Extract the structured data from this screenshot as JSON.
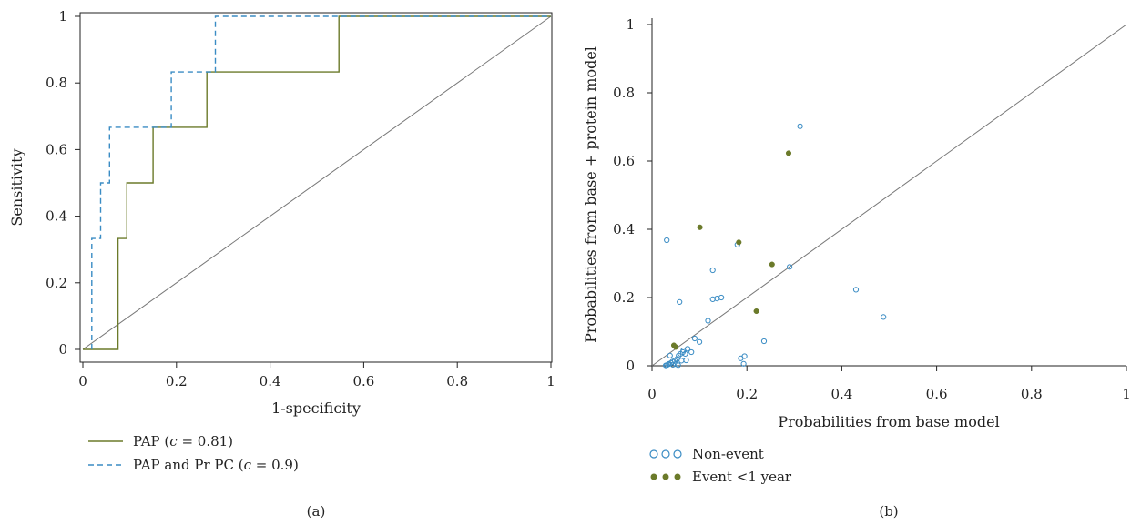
{
  "chart_data": [
    {
      "type": "line",
      "panel_label": "(a)",
      "xlabel": "1-specificity",
      "ylabel": "Sensitivity",
      "xlim": [
        0,
        1
      ],
      "ylim": [
        0,
        1
      ],
      "xticks": [
        "0",
        "0.2",
        "0.4",
        "0.6",
        "0.8",
        "1"
      ],
      "yticks": [
        "0",
        "0.2",
        "0.4",
        "0.6",
        "0.8",
        "1"
      ],
      "legend_position": "below",
      "reference_line": [
        [
          0,
          0
        ],
        [
          1,
          1
        ]
      ],
      "series": [
        {
          "name": "PAP (c = 0.81)",
          "legend_prefix": "PAP (",
          "legend_c": "c",
          "legend_suffix": " = 0.81)",
          "color": "#6b7a2a",
          "dash": "solid",
          "step_points": [
            [
              0,
              0
            ],
            [
              0.075,
              0
            ],
            [
              0.075,
              0.333
            ],
            [
              0.094,
              0.333
            ],
            [
              0.094,
              0.5
            ],
            [
              0.15,
              0.5
            ],
            [
              0.15,
              0.667
            ],
            [
              0.265,
              0.667
            ],
            [
              0.265,
              0.833
            ],
            [
              0.547,
              0.833
            ],
            [
              0.547,
              1.0
            ],
            [
              1.0,
              1.0
            ]
          ]
        },
        {
          "name": "PAP and Pr PC (c = 0.9)",
          "legend_prefix": "PAP and Pr PC (",
          "legend_c": "c",
          "legend_suffix": " = 0.9)",
          "color": "#3a8cc4",
          "dash": "dashed",
          "step_points": [
            [
              0.019,
              0
            ],
            [
              0.019,
              0.333
            ],
            [
              0.038,
              0.333
            ],
            [
              0.038,
              0.5
            ],
            [
              0.057,
              0.5
            ],
            [
              0.057,
              0.667
            ],
            [
              0.189,
              0.667
            ],
            [
              0.189,
              0.833
            ],
            [
              0.283,
              0.833
            ],
            [
              0.283,
              1.0
            ],
            [
              1.0,
              1.0
            ]
          ]
        }
      ]
    },
    {
      "type": "scatter",
      "panel_label": "(b)",
      "xlabel": "Probabilities from base model",
      "ylabel": "Probabilities from base + protein model",
      "xlim": [
        0,
        1
      ],
      "ylim": [
        0,
        1
      ],
      "xticks": [
        "0",
        "0.2",
        "0.4",
        "0.6",
        "0.8",
        "1"
      ],
      "yticks": [
        "0",
        "0.2",
        "0.4",
        "0.6",
        "0.8",
        "1"
      ],
      "legend_position": "below",
      "reference_line": [
        [
          0,
          0
        ],
        [
          1,
          1
        ]
      ],
      "series": [
        {
          "name": "Non-event",
          "color": "#3a8cc4",
          "marker": "open-circle",
          "points": [
            [
              0.031,
              0.368
            ],
            [
              0.312,
              0.702
            ],
            [
              0.18,
              0.355
            ],
            [
              0.128,
              0.28
            ],
            [
              0.058,
              0.187
            ],
            [
              0.128,
              0.195
            ],
            [
              0.137,
              0.197
            ],
            [
              0.146,
              0.2
            ],
            [
              0.43,
              0.223
            ],
            [
              0.29,
              0.29
            ],
            [
              0.118,
              0.132
            ],
            [
              0.488,
              0.143
            ],
            [
              0.236,
              0.072
            ],
            [
              0.1,
              0.07
            ],
            [
              0.09,
              0.08
            ],
            [
              0.083,
              0.04
            ],
            [
              0.075,
              0.05
            ],
            [
              0.07,
              0.035
            ],
            [
              0.065,
              0.04
            ],
            [
              0.06,
              0.035
            ],
            [
              0.056,
              0.03
            ],
            [
              0.053,
              0.02
            ],
            [
              0.048,
              0.015
            ],
            [
              0.043,
              0.012
            ],
            [
              0.04,
              0.008
            ],
            [
              0.036,
              0.006
            ],
            [
              0.034,
              0.004
            ],
            [
              0.031,
              0.002
            ],
            [
              0.029,
              0.001
            ],
            [
              0.044,
              0.003
            ],
            [
              0.05,
              0.005
            ],
            [
              0.055,
              0.002
            ],
            [
              0.062,
              0.015
            ],
            [
              0.066,
              0.045
            ],
            [
              0.072,
              0.016
            ],
            [
              0.187,
              0.022
            ],
            [
              0.195,
              0.028
            ],
            [
              0.193,
              0.006
            ],
            [
              0.038,
              0.03
            ]
          ]
        },
        {
          "name": "Event <1 year",
          "color": "#6b7a2a",
          "marker": "filled-circle",
          "points": [
            [
              0.288,
              0.623
            ],
            [
              0.101,
              0.406
            ],
            [
              0.183,
              0.362
            ],
            [
              0.253,
              0.297
            ],
            [
              0.22,
              0.16
            ],
            [
              0.046,
              0.06
            ],
            [
              0.05,
              0.055
            ]
          ]
        }
      ]
    }
  ]
}
